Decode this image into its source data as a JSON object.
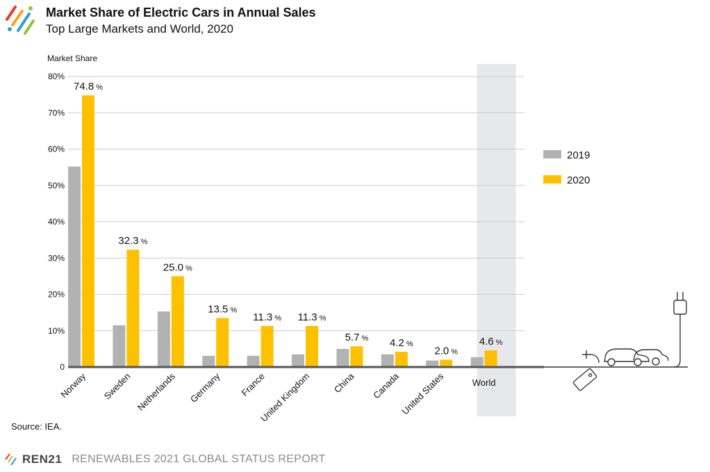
{
  "header": {
    "title": "Market Share of Electric Cars in Annual Sales",
    "subtitle": "Top Large Markets and World, 2020"
  },
  "source": "Source: IEA.",
  "footer": {
    "brand": "REN21",
    "report": "RENEWABLES 2021 GLOBAL STATUS REPORT"
  },
  "colors": {
    "series_2019": "#b2b2b2",
    "series_2020": "#ffc000",
    "highlight_band": "#e6e8eb",
    "gridline": "#cccccc",
    "axis": "#555555"
  },
  "chart_data": {
    "type": "bar",
    "title": "Market Share of Electric Cars in Annual Sales",
    "subtitle": "Top Large Markets and World, 2020",
    "ylabel": "Market Share",
    "xlabel": "",
    "ylim": [
      0,
      80
    ],
    "yticks": [
      "0",
      "10%",
      "20%",
      "30%",
      "40%",
      "50%",
      "60%",
      "70%",
      "80%"
    ],
    "categories": [
      "Norway",
      "Sweden",
      "Netherlands",
      "Germany",
      "France",
      "United Kingdom",
      "China",
      "Canada",
      "United States",
      "World"
    ],
    "highlight_category": "World",
    "series": [
      {
        "name": "2019",
        "values": [
          55.2,
          11.5,
          15.3,
          3.1,
          3.1,
          3.5,
          5.0,
          3.5,
          1.8,
          2.7
        ]
      },
      {
        "name": "2020",
        "values": [
          74.8,
          32.3,
          25.0,
          13.5,
          11.3,
          11.3,
          5.7,
          4.2,
          2.0,
          4.6
        ]
      }
    ],
    "data_labels": [
      "74.8",
      "32.3",
      "25.0",
      "13.5",
      "11.3",
      "11.3",
      "5.7",
      "4.2",
      "2.0",
      "4.6"
    ],
    "data_label_unit": "%",
    "grid": true,
    "legend_position": "right"
  }
}
